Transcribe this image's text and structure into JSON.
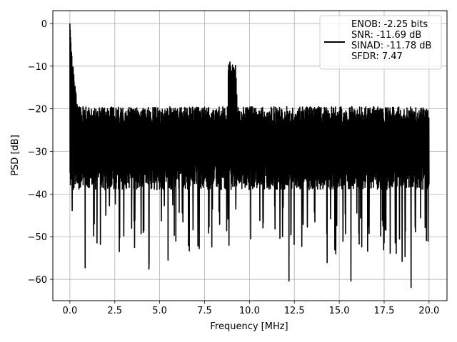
{
  "chart_data": {
    "type": "line",
    "title": "",
    "xlabel": "Frequency [MHz]",
    "ylabel": "PSD [dB]",
    "xlim": [
      -0.95,
      21.0
    ],
    "ylim": [
      -65.0,
      3.0
    ],
    "x_ticks": [
      0.0,
      2.5,
      5.0,
      7.5,
      10.0,
      12.5,
      15.0,
      17.5,
      20.0
    ],
    "x_tick_labels": [
      "0.0",
      "2.5",
      "5.0",
      "7.5",
      "10.0",
      "12.5",
      "15.0",
      "17.5",
      "20.0"
    ],
    "y_ticks": [
      0,
      -10,
      -20,
      -30,
      -40,
      -50,
      -60
    ],
    "y_tick_labels": [
      "0",
      "−10",
      "−20",
      "−30",
      "−40",
      "−50",
      "−60"
    ],
    "grid": true,
    "legend_position": "top-right",
    "series": [
      {
        "color": "#000000",
        "x_range": [
          0.0,
          20.0
        ],
        "peak": {
          "x": 0.0,
          "y": 0.0
        },
        "noise_floor_upper_mean": -21.5,
        "noise_floor_lower_mean": -36.0,
        "spur_region": {
          "x": [
            8.8,
            9.3
          ],
          "y_max": -9.0
        },
        "low_points": [
          {
            "x": 0.85,
            "y": -57.3
          },
          {
            "x": 1.7,
            "y": -51.8
          },
          {
            "x": 2.75,
            "y": -53.5
          },
          {
            "x": 4.4,
            "y": -57.6
          },
          {
            "x": 5.9,
            "y": -51.0
          },
          {
            "x": 6.65,
            "y": -53.3
          },
          {
            "x": 12.2,
            "y": -60.4
          },
          {
            "x": 15.65,
            "y": -60.4
          },
          {
            "x": 18.5,
            "y": -55.8
          },
          {
            "x": 19.0,
            "y": -61.9
          }
        ]
      }
    ],
    "legend_lines": [
      "ENOB: -2.25 bits",
      "SNR: -11.69 dB",
      "SINAD: -11.78 dB",
      "SFDR: 7.47"
    ]
  }
}
